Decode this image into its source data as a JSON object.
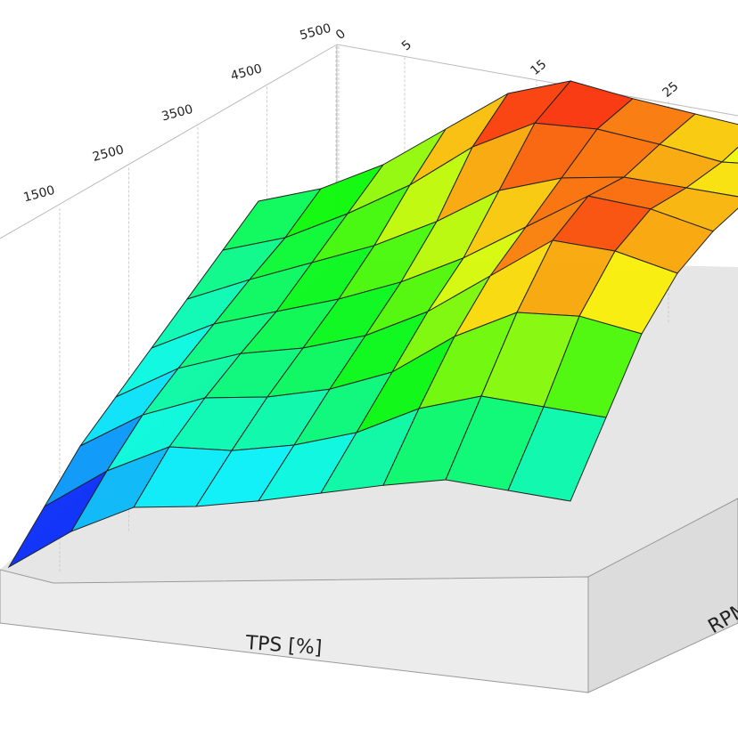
{
  "chart_data": {
    "type": "surface",
    "xlabel": "TPS [%]",
    "ylabel": "RPM",
    "xticks": [
      0,
      5,
      15,
      25
    ],
    "yticks": [
      1500,
      2500,
      3500,
      4500,
      5500
    ],
    "values": [
      [
        5,
        20,
        30,
        30,
        32,
        35,
        38,
        40,
        35,
        30
      ],
      [
        15,
        30,
        40,
        38,
        40,
        45,
        55,
        60,
        55,
        50
      ],
      [
        25,
        38,
        45,
        45,
        48,
        55,
        70,
        80,
        78,
        70
      ],
      [
        30,
        42,
        48,
        50,
        55,
        65,
        80,
        95,
        90,
        80
      ],
      [
        35,
        45,
        50,
        55,
        62,
        72,
        85,
        98,
        92,
        82
      ],
      [
        40,
        48,
        55,
        62,
        72,
        85,
        90,
        90,
        85,
        80
      ],
      [
        45,
        50,
        60,
        72,
        88,
        98,
        95,
        88,
        80,
        78
      ],
      [
        50,
        55,
        65,
        80,
        95,
        100,
        92,
        85,
        78,
        75
      ]
    ]
  }
}
